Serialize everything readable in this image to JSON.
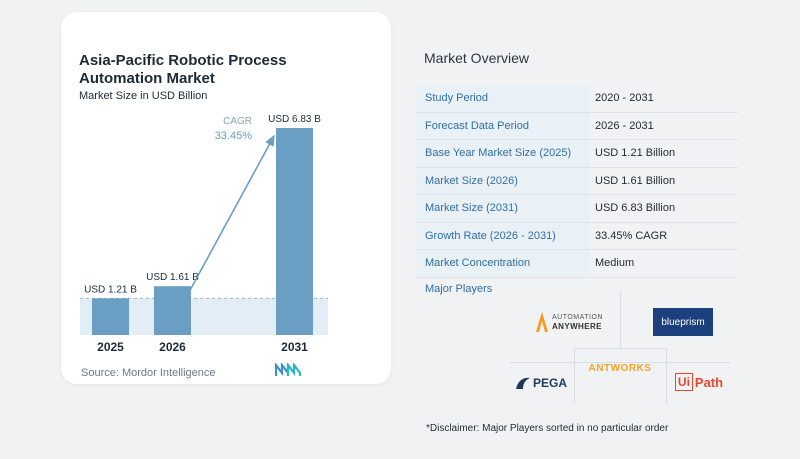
{
  "chart_data": {
    "type": "bar",
    "title": "Asia-Pacific Robotic Process Automation Market",
    "subtitle": "Market Size in USD Billion",
    "categories": [
      "2025",
      "2026",
      "2031"
    ],
    "values": [
      1.21,
      1.61,
      6.83
    ],
    "data_labels": [
      "USD 1.21 B",
      "USD 1.61 B",
      "USD 6.83 B"
    ],
    "bar_color": "#6a9ec2",
    "cagr_label": "CAGR",
    "cagr_value": "33.45%",
    "source": "Source:  Mordor Intelligence"
  },
  "overview": {
    "title": "Market Overview",
    "rows": [
      {
        "label": "Study Period",
        "value": "2020 - 2031"
      },
      {
        "label": "Forecast Data Period",
        "value": "2026 - 2031"
      },
      {
        "label": "Base Year Market Size (2025)",
        "value": "USD 1.21 Billion"
      },
      {
        "label": "Market Size (2026)",
        "value": "USD 1.61 Billion"
      },
      {
        "label": "Market Size (2031)",
        "value": "USD 6.83 Billion"
      },
      {
        "label": "Growth Rate (2026 - 2031)",
        "value": "33.45% CAGR"
      },
      {
        "label": "Market Concentration",
        "value": "Medium"
      }
    ]
  },
  "players": {
    "title": "Major Players",
    "automation_anywhere": [
      "AUTOMATION",
      "ANYWHERE"
    ],
    "blueprism": "blueprism",
    "antworks": "ANTWORKS",
    "pega": "PEGA",
    "uipath_ui": "Ui",
    "uipath_path": "Path"
  },
  "disclaimer": "*Disclaimer: Major Players sorted in no particular order",
  "colors": {
    "bar": "#6a9ec2",
    "accent_blue": "#2f6fa3",
    "antworks_orange": "#f3a32a",
    "uipath_red": "#e8472f"
  }
}
